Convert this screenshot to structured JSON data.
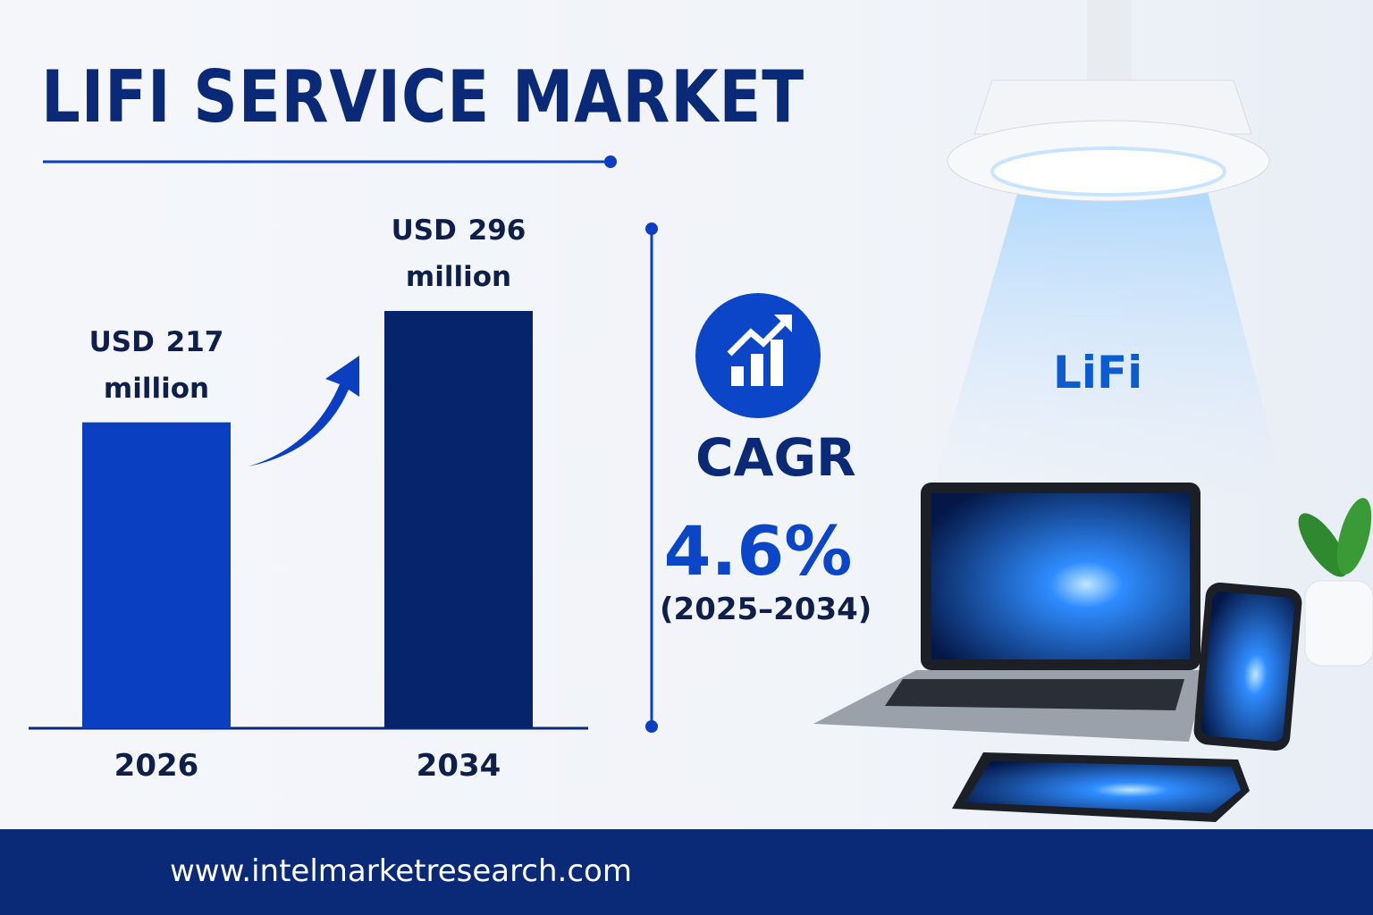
{
  "title": "LIFI SERVICE MARKET",
  "chart_data": {
    "type": "bar",
    "categories": [
      "2026",
      "2034"
    ],
    "values": [
      217,
      296
    ],
    "value_labels": [
      "USD 217 million",
      "USD 296 million"
    ],
    "colors": [
      "#0b3fc2",
      "#06246b"
    ]
  },
  "cagr": {
    "label": "CAGR",
    "value": "4.6%",
    "period": "(2025–2034)"
  },
  "illustration": {
    "label": "LiFi"
  },
  "footer": {
    "url": "www.intelmarketresearch.com"
  }
}
